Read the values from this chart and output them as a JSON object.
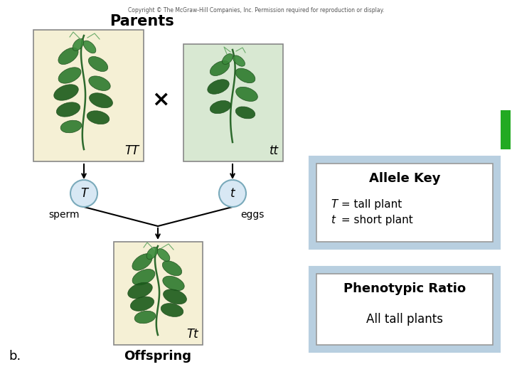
{
  "title": "Parents",
  "copyright": "Copyright © The McGraw-Hill Companies, Inc. Permission required for reproduction or display.",
  "bg_color": "#ffffff",
  "parent1_box_color": "#f5f0d5",
  "parent2_box_color": "#d8e8d2",
  "offspring_box_color": "#f5f0d5",
  "box_edge_color": "#888888",
  "allele_outer_color": "#b8cfe0",
  "circle_fill_color": "#d8e8f4",
  "circle_edge_color": "#7aaabb",
  "label_TT": "TT",
  "label_tt": "tt",
  "label_Tt": "Tt",
  "label_T": "T",
  "label_t": "t",
  "label_sperm": "sperm",
  "label_eggs": "eggs",
  "label_offspring": "Offspring",
  "label_b": "b.",
  "allele_key_title": "Allele Key",
  "allele_key_line1_italic": "T",
  "allele_key_line1_rest": " = tall plant",
  "allele_key_line2_italic": "t",
  "allele_key_line2_rest": " = short plant",
  "phenotypic_title": "Phenotypic Ratio",
  "phenotypic_line1": "All tall plants",
  "cross_symbol": "×",
  "green_bar_color": "#22aa22",
  "arrow_color": "#000000",
  "line_color": "#000000",
  "plant_stem_color": "#2d6a2d",
  "plant_leaf_color": "#2d7a2d",
  "plant_leaf_dark": "#1a5a1a"
}
